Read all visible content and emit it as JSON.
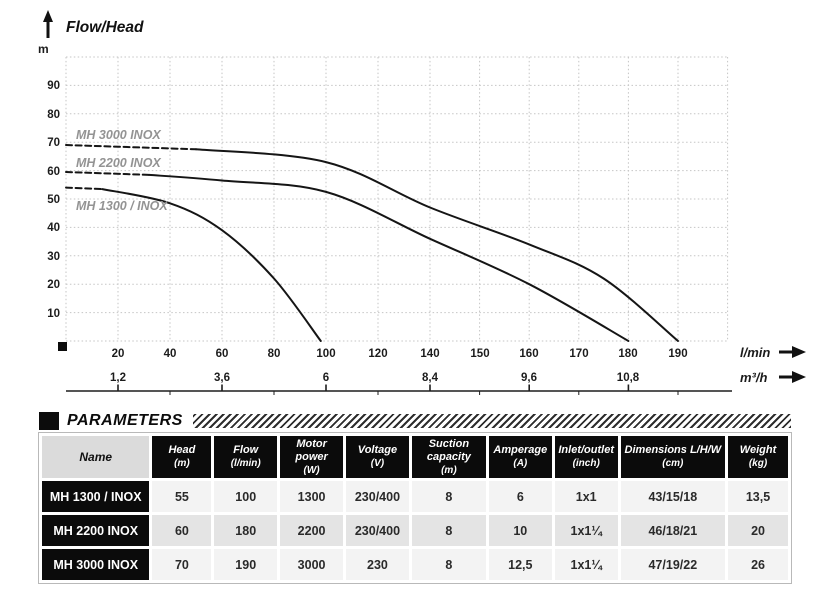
{
  "chart_data": {
    "type": "line",
    "title": "Flow/Head",
    "ylabel": "m",
    "xlabel": "l/min",
    "xlabel_secondary": "m³/h",
    "ylim": [
      0,
      100
    ],
    "grid": true,
    "legend_position": "inline-left",
    "y_ticks": [
      90,
      80,
      70,
      60,
      50,
      40,
      30,
      20,
      10
    ],
    "x_ticks_lmin": [
      20,
      40,
      60,
      80,
      100,
      120,
      140,
      150,
      160,
      170,
      180,
      190
    ],
    "x_ticks_m3h": [
      "1,2",
      "3,6",
      "6",
      "8,4",
      "9,6",
      "10,8"
    ],
    "x_ticks_m3h_values": [
      1.2,
      3.6,
      6,
      8.4,
      9.6,
      10.8
    ],
    "x_ticks_m3h_at_lmin": [
      20,
      60,
      100,
      140,
      160,
      180
    ],
    "x_gridlines_lmin": [
      0,
      20,
      40,
      60,
      80,
      100,
      120,
      140,
      150,
      160,
      170,
      180,
      190,
      200
    ],
    "series": [
      {
        "name": "MH 3000 INOX",
        "dashed": [
          [
            0,
            69
          ],
          [
            50,
            67.5
          ]
        ],
        "solid": [
          [
            50,
            67.5
          ],
          [
            100,
            63
          ],
          [
            140,
            47
          ],
          [
            160,
            34
          ],
          [
            175,
            22
          ],
          [
            190,
            0
          ]
        ]
      },
      {
        "name": "MH 2200 INOX",
        "dashed": [
          [
            0,
            59.5
          ],
          [
            32,
            58.5
          ]
        ],
        "solid": [
          [
            32,
            58.5
          ],
          [
            60,
            56.5
          ],
          [
            100,
            52.5
          ],
          [
            140,
            36
          ],
          [
            160,
            20
          ],
          [
            180,
            0
          ]
        ]
      },
      {
        "name": "MH 1300 / INOX",
        "dashed": [
          [
            0,
            54
          ],
          [
            14,
            53.5
          ]
        ],
        "solid": [
          [
            14,
            53.5
          ],
          [
            40,
            48.5
          ],
          [
            60,
            39
          ],
          [
            80,
            22
          ],
          [
            98,
            0
          ]
        ]
      }
    ]
  },
  "parameters": {
    "section_title": "PARAMETERS",
    "columns": [
      {
        "name": "Name",
        "unit": ""
      },
      {
        "name": "Head",
        "unit": "(m)"
      },
      {
        "name": "Flow",
        "unit": "(l/min)"
      },
      {
        "name": "Motor power",
        "unit": "(W)"
      },
      {
        "name": "Voltage",
        "unit": "(V)"
      },
      {
        "name": "Suction capacity",
        "unit": "(m)"
      },
      {
        "name": "Amperage",
        "unit": "(A)"
      },
      {
        "name": "Inlet/outlet",
        "unit": "(inch)"
      },
      {
        "name": "Dimensions L/H/W",
        "unit": "(cm)"
      },
      {
        "name": "Weight",
        "unit": "(kg)"
      }
    ],
    "rows": [
      {
        "name": "MH 1300 / INOX",
        "values": [
          "55",
          "100",
          "1300",
          "230/400",
          "8",
          "6",
          "1x1",
          "43/15/18",
          "13,5"
        ]
      },
      {
        "name": "MH 2200 INOX",
        "values": [
          "60",
          "180",
          "2200",
          "230/400",
          "8",
          "10",
          "1x1¼",
          "46/18/21",
          "20"
        ]
      },
      {
        "name": "MH 3000 INOX",
        "values": [
          "70",
          "190",
          "3000",
          "230",
          "8",
          "12,5",
          "1x1¼",
          "47/19/22",
          "26"
        ]
      }
    ]
  }
}
